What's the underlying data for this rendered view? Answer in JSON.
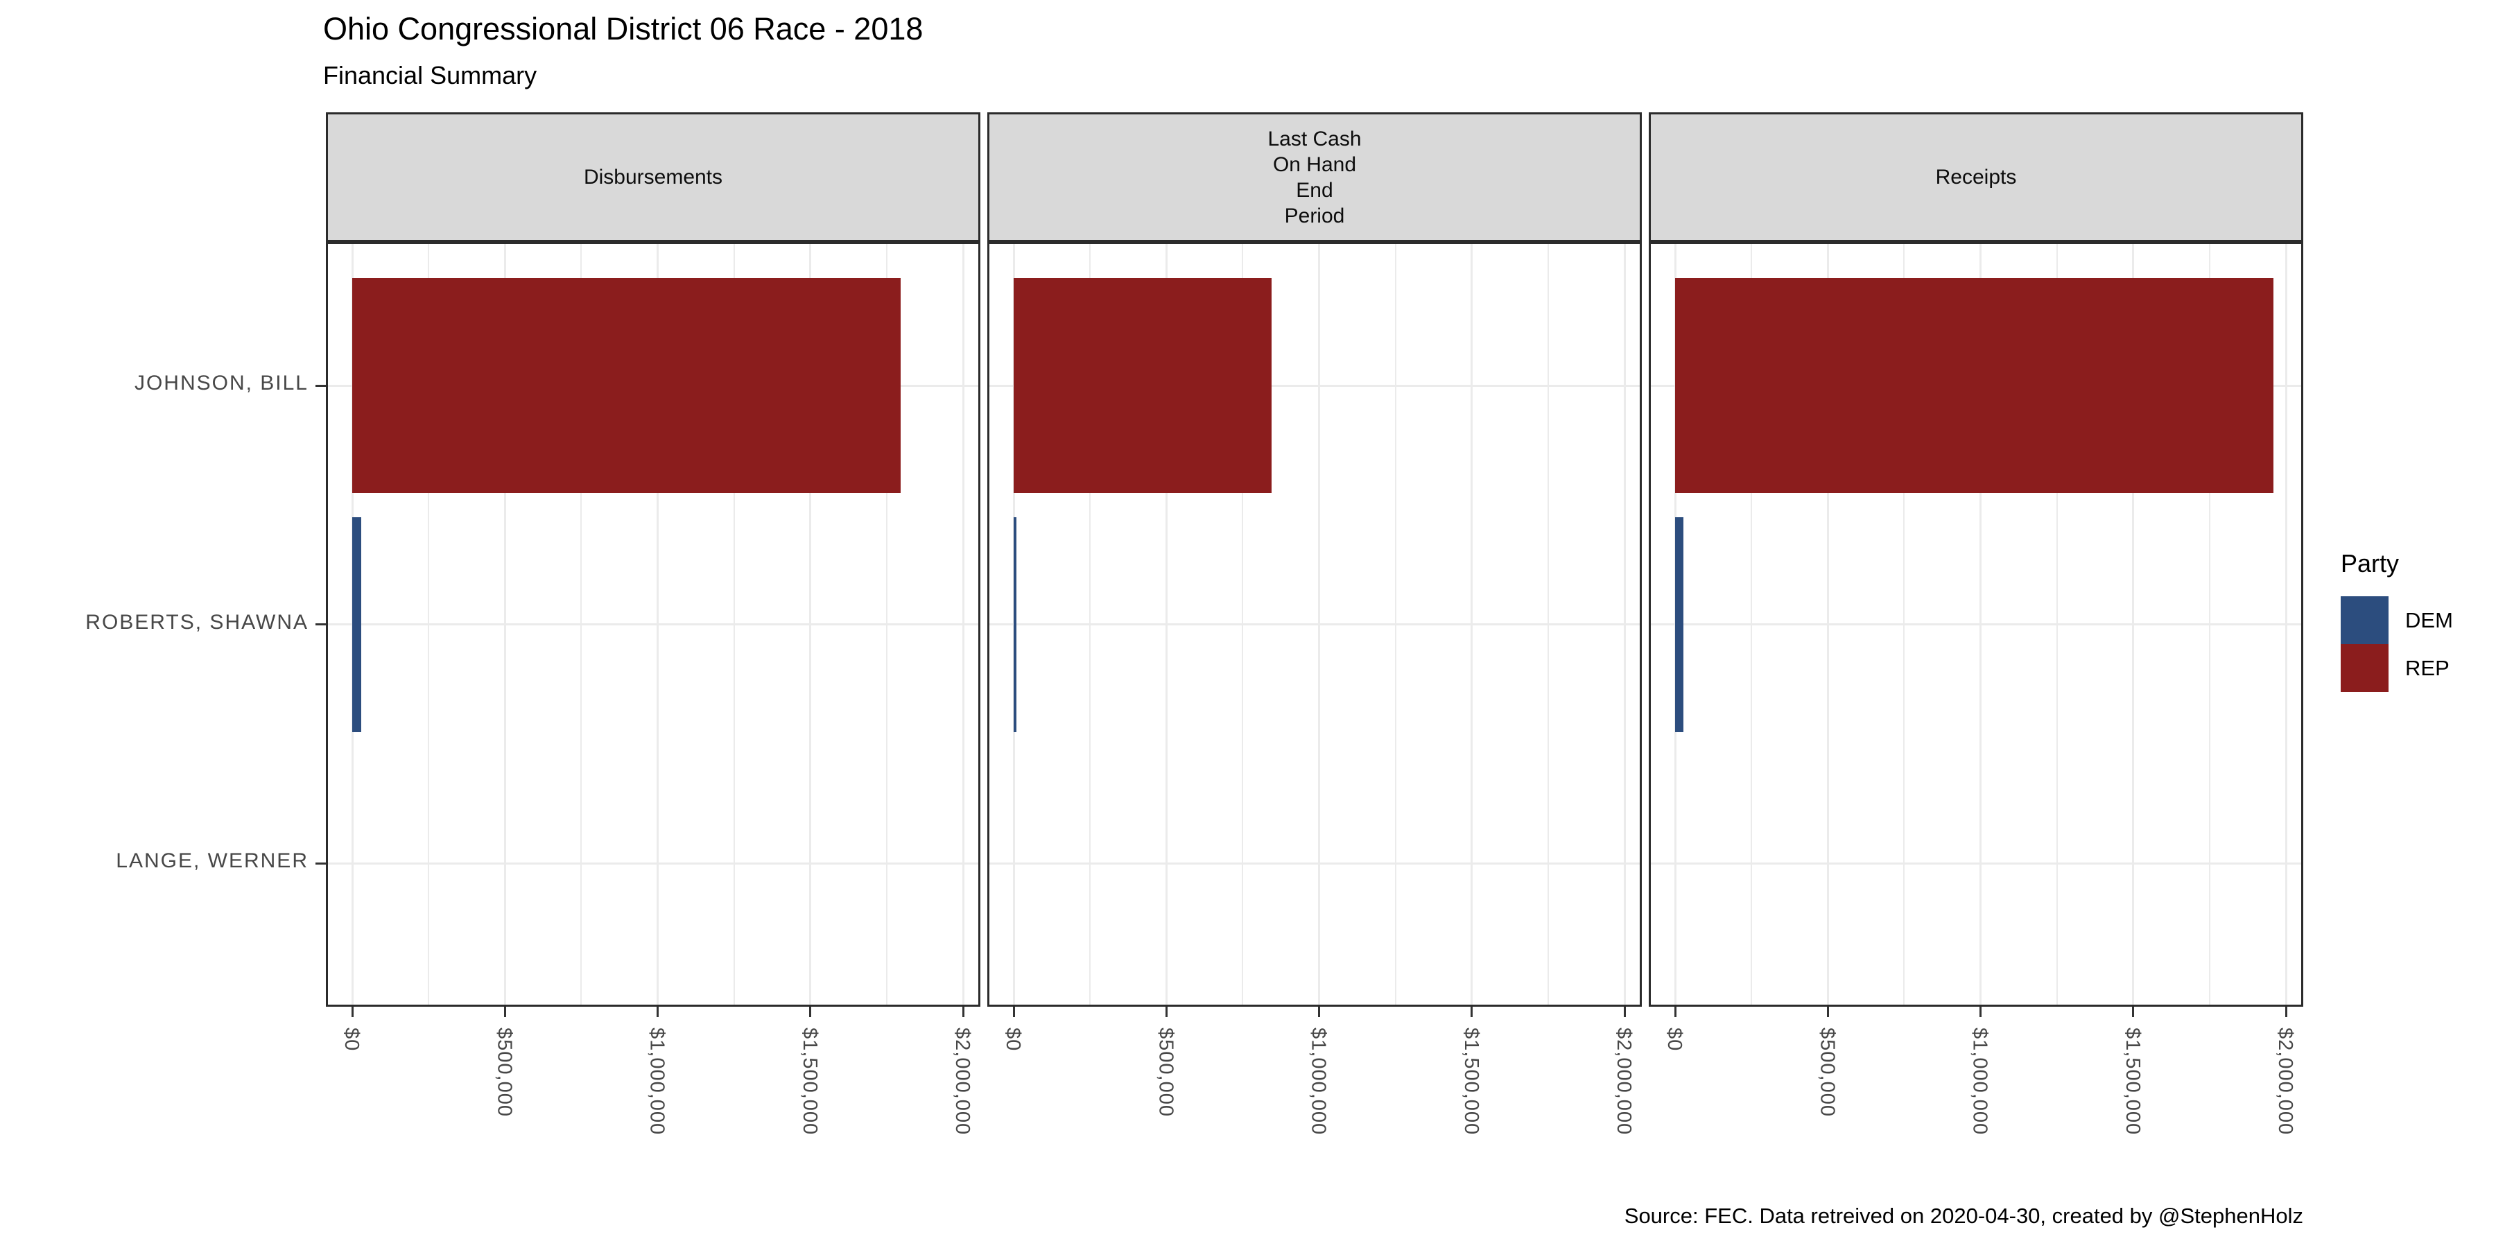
{
  "chart_data": {
    "type": "bar",
    "orientation": "horizontal",
    "title": "Ohio Congressional District 06 Race - 2018",
    "subtitle": "Financial Summary",
    "caption": "Source: FEC. Data retreived on 2020-04-30, created by @StephenHolz",
    "categories": [
      "JOHNSON, BILL",
      "ROBERTS, SHAWNA",
      "LANGE, WERNER"
    ],
    "category_parties": [
      "REP",
      "DEM",
      "NONE"
    ],
    "facets": [
      {
        "label_text": "Disbursements",
        "values": [
          1795000,
          29500,
          0
        ]
      },
      {
        "label_text": "Last Cash\nOn Hand\nEnd\nPeriod",
        "values": [
          845000,
          9000,
          0
        ]
      },
      {
        "label_text": "Receipts",
        "values": [
          1960000,
          26500,
          0
        ]
      }
    ],
    "x_axis": {
      "min": 0,
      "max": 2000000,
      "major_ticks": [
        {
          "value": 0,
          "label": "$0"
        },
        {
          "value": 500000,
          "label": "$500,000"
        },
        {
          "value": 1000000,
          "label": "$1,000,000"
        },
        {
          "value": 1500000,
          "label": "$1,500,000"
        },
        {
          "value": 2000000,
          "label": "$2,000,000"
        }
      ],
      "minor_step": 250000
    },
    "legend": {
      "title": "Party",
      "entries": [
        {
          "label": "DEM",
          "color": "#2C4D7E"
        },
        {
          "label": "REP",
          "color": "#8B1D1D"
        }
      ]
    },
    "colors": {
      "strip_background": "#D9D9D9",
      "panel_border": "#2b2b2b",
      "grid": "#EBEBEB",
      "axis_text": "#474747"
    },
    "grid": true,
    "legend_position": "right"
  }
}
